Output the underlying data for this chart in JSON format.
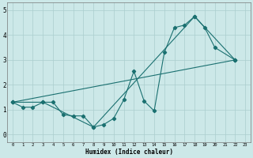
{
  "background_color": "#cce8e8",
  "grid_color": "#aacece",
  "line_color": "#1a7070",
  "xlim_left": -0.5,
  "xlim_right": 23.5,
  "ylim_bottom": -0.3,
  "ylim_top": 5.3,
  "xlabel": "Humidex (Indice chaleur)",
  "xticks": [
    0,
    1,
    2,
    3,
    4,
    5,
    6,
    7,
    8,
    9,
    10,
    11,
    12,
    13,
    14,
    15,
    16,
    17,
    18,
    19,
    20,
    21,
    22,
    23
  ],
  "yticks": [
    0,
    1,
    2,
    3,
    4,
    5
  ],
  "series1_x": [
    0,
    1,
    2,
    3,
    4,
    5,
    6,
    7,
    8,
    9,
    10,
    11,
    12,
    13,
    14,
    15,
    16,
    17,
    18,
    19,
    20,
    22
  ],
  "series1_y": [
    1.3,
    1.1,
    1.1,
    1.3,
    1.3,
    0.8,
    0.75,
    0.75,
    0.3,
    0.4,
    0.65,
    1.4,
    2.55,
    1.35,
    0.95,
    3.3,
    4.3,
    4.4,
    4.75,
    4.3,
    3.5,
    3.0
  ],
  "series2_x": [
    0,
    3,
    8,
    18,
    22
  ],
  "series2_y": [
    1.3,
    1.3,
    0.3,
    4.75,
    3.0
  ],
  "series3_x": [
    0,
    22
  ],
  "series3_y": [
    1.3,
    3.0
  ]
}
